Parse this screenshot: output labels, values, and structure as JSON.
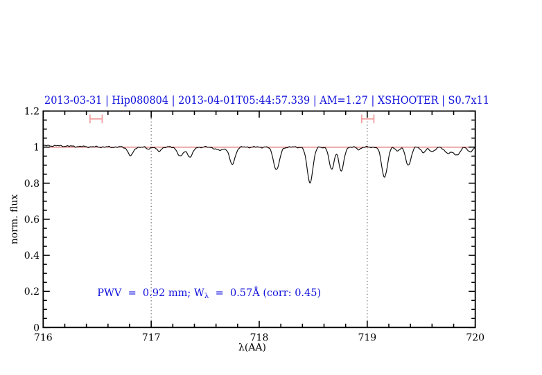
{
  "title": "2013-03-31 | Hip080804 | 2013-04-01T05:44:57.339 | AM=1.27 | XSHOOTER | S0.7x11",
  "colors": {
    "accent_blue": "#0f0fdc",
    "continuum_red": "#dd5c5c",
    "marker_pink": "#f2a2a2",
    "spectrum_black": "#111111",
    "dotted_gray": "#3a3a3a"
  },
  "chart_data": {
    "type": "line",
    "title": "2013-03-31 | Hip080804 | 2013-04-01T05:44:57.339 | AM=1.27 | XSHOOTER | S0.7x11",
    "xlabel": "λ(AA)",
    "ylabel": "norm. flux",
    "xlim": [
      716,
      720
    ],
    "ylim": [
      0,
      1.2
    ],
    "x_tick_labels": [
      "716",
      "717",
      "718",
      "719",
      "720"
    ],
    "x_major_ticks": [
      716,
      717,
      718,
      719,
      720
    ],
    "x_minor_step": 0.2,
    "y_tick_labels": [
      "0",
      "0.2",
      "0.4",
      "0.6",
      "0.8",
      "1",
      "1.2"
    ],
    "y_major_ticks": [
      0,
      0.2,
      0.4,
      0.6,
      0.8,
      1.0,
      1.2
    ],
    "y_minor_step": 0.05,
    "dotted_vlines": [
      717,
      719
    ],
    "continuum_level": 1.0,
    "spectrum": {
      "baseline": 1.0,
      "edge_rise": {
        "amplitude": 0.008,
        "scale": 0.35
      },
      "features": [
        {
          "center": 716.81,
          "depth": 0.048,
          "sigma": 0.024
        },
        {
          "center": 716.97,
          "depth": 0.01,
          "sigma": 0.018
        },
        {
          "center": 717.07,
          "depth": 0.024,
          "sigma": 0.02
        },
        {
          "center": 717.27,
          "depth": 0.052,
          "sigma": 0.026
        },
        {
          "center": 717.36,
          "depth": 0.054,
          "sigma": 0.026
        },
        {
          "center": 717.63,
          "depth": 0.018,
          "sigma": 0.035
        },
        {
          "center": 717.75,
          "depth": 0.096,
          "sigma": 0.026
        },
        {
          "center": 718.16,
          "depth": 0.125,
          "sigma": 0.028
        },
        {
          "center": 718.47,
          "depth": 0.195,
          "sigma": 0.027
        },
        {
          "center": 718.67,
          "depth": 0.125,
          "sigma": 0.023
        },
        {
          "center": 718.76,
          "depth": 0.135,
          "sigma": 0.023
        },
        {
          "center": 718.92,
          "depth": 0.012,
          "sigma": 0.02
        },
        {
          "center": 719.16,
          "depth": 0.165,
          "sigma": 0.027
        },
        {
          "center": 719.28,
          "depth": 0.02,
          "sigma": 0.018
        },
        {
          "center": 719.38,
          "depth": 0.1,
          "sigma": 0.025
        },
        {
          "center": 719.52,
          "depth": 0.028,
          "sigma": 0.022
        },
        {
          "center": 719.6,
          "depth": 0.025,
          "sigma": 0.025
        },
        {
          "center": 719.75,
          "depth": 0.032,
          "sigma": 0.035
        },
        {
          "center": 719.83,
          "depth": 0.042,
          "sigma": 0.028
        },
        {
          "center": 719.95,
          "depth": 0.026,
          "sigma": 0.022
        }
      ]
    },
    "range_markers": [
      {
        "center": 716.49,
        "half_width": 0.0565,
        "flux": 1.1566,
        "half_height_flux": 0.0242
      },
      {
        "center": 719.005,
        "half_width": 0.0565,
        "flux": 1.1566,
        "half_height_flux": 0.0242
      }
    ],
    "annotation": {
      "pre": "PWV  =  0.92 mm; W",
      "sub": "λ",
      "post": "  =  0.57Å (corr: 0.45)",
      "x": 716.5,
      "flux": 0.174
    }
  }
}
